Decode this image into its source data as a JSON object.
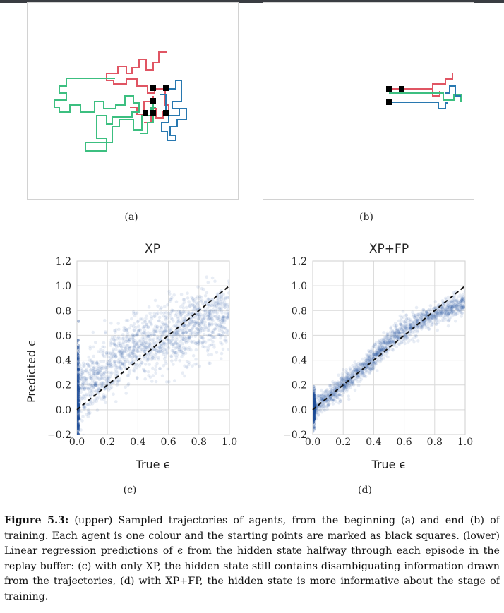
{
  "figure": {
    "subfig_labels": [
      "(a)",
      "(b)",
      "(c)",
      "(d)"
    ],
    "caption": {
      "label": "Figure 5.3:",
      "text": " (upper) Sampled trajectories of agents, from the beginning (a) and end (b) of training. Each agent is one colour and the starting points are marked as black squares. (lower) Linear regression predictions of ϵ from the hidden state halfway through each episode in the replay buffer: (c) with only XP, the hidden state still contains disambiguating information drawn from the trajectories, (d) with XP+FP, the hidden state is more informative about the stage of training."
    },
    "colors": {
      "agent_red": "#e05563",
      "agent_green": "#3cbf80",
      "agent_blue": "#2878b0",
      "start_marker": "#000000",
      "scatter_points": "#1f4e99",
      "diagonal": "#111111",
      "grid": "#d9d9d9",
      "panel_border": "#d2d2d2"
    }
  },
  "chart_data": [
    {
      "type": "scatter",
      "panel": "(c)",
      "title": "XP",
      "xlabel": "True ϵ",
      "ylabel": "Predicted ϵ",
      "xlim": [
        0.0,
        1.0
      ],
      "ylim": [
        -0.2,
        1.2
      ],
      "xticks": [
        "0.0",
        "0.2",
        "0.4",
        "0.6",
        "0.8",
        "1.0"
      ],
      "yticks": [
        "−0.2",
        "0.0",
        "0.2",
        "0.4",
        "0.6",
        "0.8",
        "1.0",
        "1.2"
      ],
      "grid": true,
      "reference_line": {
        "x": [
          0.0,
          1.0
        ],
        "y": [
          0.0,
          1.0
        ],
        "style": "dashed"
      },
      "trend": {
        "x": [
          0.0,
          0.05,
          0.1,
          0.2,
          0.3,
          0.4,
          0.5,
          0.6,
          0.7,
          0.8,
          0.9,
          1.0
        ],
        "y": [
          0.1,
          0.17,
          0.22,
          0.33,
          0.43,
          0.5,
          0.55,
          0.6,
          0.64,
          0.69,
          0.73,
          0.76
        ]
      },
      "spread": 0.13
    },
    {
      "type": "scatter",
      "panel": "(d)",
      "title": "XP+FP",
      "xlabel": "True ϵ",
      "ylabel": "",
      "xlim": [
        0.0,
        1.0
      ],
      "ylim": [
        -0.2,
        1.2
      ],
      "xticks": [
        "0.0",
        "0.2",
        "0.4",
        "0.6",
        "0.8",
        "1.0"
      ],
      "yticks": [
        "−0.2",
        "0.0",
        "0.2",
        "0.4",
        "0.6",
        "0.8",
        "1.0",
        "1.2"
      ],
      "grid": true,
      "reference_line": {
        "x": [
          0.0,
          1.0
        ],
        "y": [
          0.0,
          1.0
        ],
        "style": "dashed"
      },
      "trend": {
        "x": [
          0.0,
          0.1,
          0.2,
          0.3,
          0.4,
          0.5,
          0.6,
          0.7,
          0.8,
          0.9,
          1.0
        ],
        "y": [
          0.0,
          0.1,
          0.2,
          0.3,
          0.42,
          0.55,
          0.64,
          0.71,
          0.77,
          0.82,
          0.86
        ]
      },
      "spread": 0.045
    }
  ]
}
